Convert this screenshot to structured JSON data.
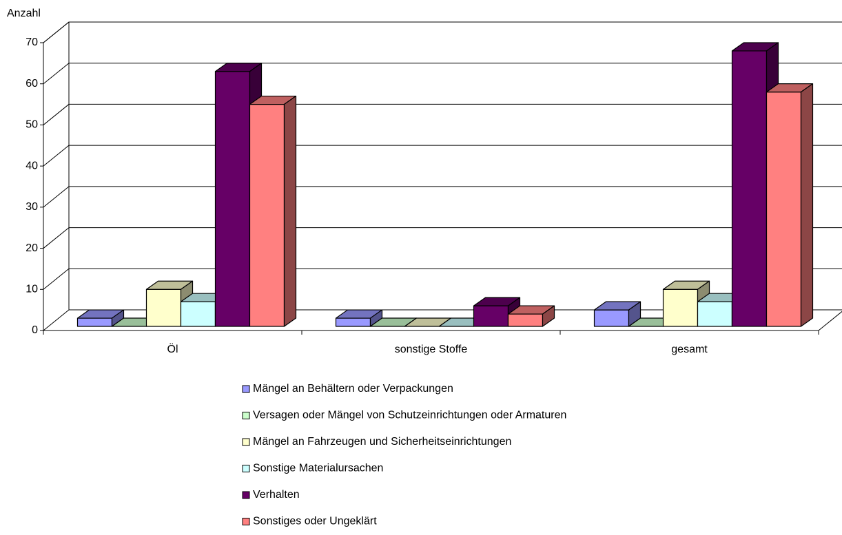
{
  "chart_data": {
    "type": "bar3d",
    "y_label": "Anzahl",
    "categories": [
      "Öl",
      "sonstige Stoffe",
      "gesamt"
    ],
    "series": [
      {
        "name": "Mängel an Behältern oder Verpackungen",
        "color": "#9999ff",
        "values": [
          2,
          2,
          4
        ]
      },
      {
        "name": "Versagen oder Mängel von Schutzeinrichtungen oder Armaturen",
        "color": "#ccffcc",
        "values": [
          0,
          0,
          0
        ]
      },
      {
        "name": "Mängel an Fahrzeugen und Sicherheitseinrichtungen",
        "color": "#ffffcc",
        "values": [
          9,
          0,
          9
        ]
      },
      {
        "name": "Sonstige Materialursachen",
        "color": "#ccffff",
        "values": [
          6,
          0,
          6
        ]
      },
      {
        "name": "Verhalten",
        "color": "#660066",
        "values": [
          62,
          5,
          67
        ]
      },
      {
        "name": "Sonstiges oder Ungeklärt",
        "color": "#ff8080",
        "values": [
          54,
          3,
          57
        ]
      }
    ],
    "ylim": [
      0,
      70
    ],
    "yticks": [
      0,
      10,
      20,
      30,
      40,
      50,
      60,
      70
    ],
    "grid": true,
    "legend": "bottom"
  }
}
